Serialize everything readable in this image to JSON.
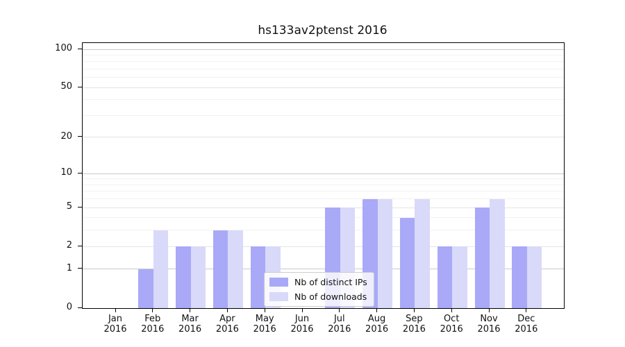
{
  "chart_data": {
    "type": "bar",
    "title": "hs133av2ptenst 2016",
    "categories": [
      "Jan",
      "Feb",
      "Mar",
      "Apr",
      "May",
      "Jun",
      "Jul",
      "Aug",
      "Sep",
      "Oct",
      "Nov",
      "Dec"
    ],
    "year": "2016",
    "series": [
      {
        "name": "Nb of distinct IPs",
        "color": "#a9a9f8",
        "values": [
          0,
          1,
          2,
          3,
          2,
          0,
          5,
          6,
          4,
          2,
          5,
          2
        ]
      },
      {
        "name": "Nb of downloads",
        "color": "#d9d9fa",
        "values": [
          0,
          3,
          2,
          3,
          2,
          0,
          5,
          6,
          6,
          2,
          6,
          2
        ]
      }
    ],
    "xlabel": "",
    "ylabel": "",
    "yticks": [
      0,
      1,
      2,
      5,
      10,
      20,
      50,
      100
    ],
    "minor_gridline_values": [
      3,
      4,
      6,
      7,
      8,
      9,
      30,
      40,
      60,
      70,
      80,
      90
    ],
    "yscale": "log10(value+1)",
    "ylim": [
      0,
      112
    ],
    "grid": true,
    "legend_position": "lower-center"
  },
  "colors": {
    "decade_gridline": "#c9c9c9",
    "labeled_gridline": "#e4e4e4",
    "minor_gridline": "#f2f2f2",
    "spine": "#000000",
    "text": "#111111",
    "legend_border": "#cccccc",
    "legend_background": "rgba(255,255,255,0.8)"
  }
}
